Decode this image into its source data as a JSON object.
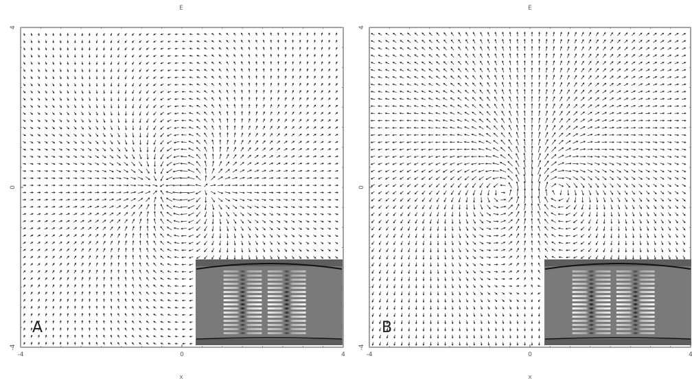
{
  "chart_data": [
    {
      "type": "quiver",
      "panel_label": "A",
      "top_label": "E",
      "xlabel": "x",
      "ylabel": "",
      "xlim": [
        -4,
        4
      ],
      "ylim": [
        -4,
        4
      ],
      "x_tick_labels": [
        "-4",
        "0",
        "4"
      ],
      "y_tick_labels": [
        "4",
        "0",
        "-4"
      ],
      "field": "dipole",
      "grid_step": 0.18,
      "inset": {
        "type": "interference-fringe-image",
        "fringe_groups": 2
      }
    },
    {
      "type": "quiver",
      "panel_label": "B",
      "top_label": "E",
      "xlabel": "x",
      "ylabel": "",
      "xlim": [
        -4,
        4
      ],
      "ylim": [
        -4,
        4
      ],
      "x_tick_labels": [
        "-4",
        "0",
        "4"
      ],
      "y_tick_labels": [
        "4",
        "0",
        "-4"
      ],
      "field": "vortex-dipole",
      "grid_step": 0.18,
      "inset": {
        "type": "interference-fringe-image",
        "fringe_groups": 2
      }
    }
  ],
  "colors": {
    "arrow": "#2b2b2b",
    "frame": "#444444",
    "inset_background": "#7a7a7a",
    "inset_band": "#5e5e5e",
    "fringe_light": "#ffffff",
    "fringe_dark": "#1e1e1e"
  }
}
